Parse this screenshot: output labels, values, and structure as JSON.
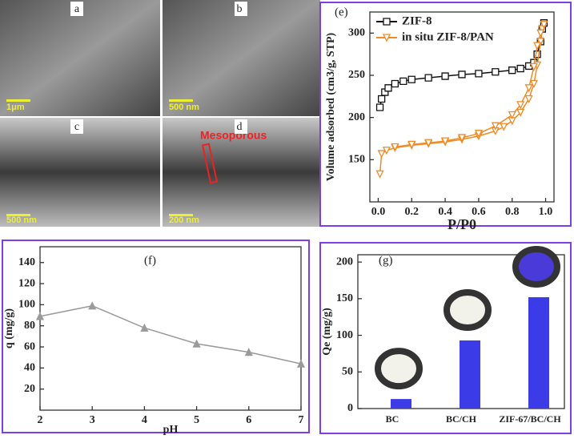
{
  "images": {
    "panels": [
      {
        "label": "a",
        "scale": "1μm"
      },
      {
        "label": "b",
        "scale": "500 nm"
      },
      {
        "label": "c",
        "scale": "500 nm"
      },
      {
        "label": "d",
        "scale": "200 nm"
      }
    ],
    "annotation": "Mesoporous"
  },
  "chart_data": [
    {
      "type": "line",
      "title": "(e)",
      "x_label": "P/P0",
      "y_label": "Volume adsorbed (cm3/g, STP)",
      "xlim": [
        -0.05,
        1.05
      ],
      "ylim": [
        100,
        325
      ],
      "xticks": [
        {
          "value": 0,
          "label": "0.0"
        },
        {
          "value": 0.2,
          "label": "0.2"
        },
        {
          "value": 0.4,
          "label": "0.4"
        },
        {
          "value": 0.6,
          "label": "0.6"
        },
        {
          "value": 0.8,
          "label": "0.8"
        },
        {
          "value": 1,
          "label": "1.0"
        }
      ],
      "yticks": [
        150,
        200,
        250,
        300
      ],
      "legend": "upper-left",
      "series": [
        {
          "name": "ZIF-8",
          "color": "#111111",
          "marker": "square",
          "x": [
            0.01,
            0.02,
            0.04,
            0.06,
            0.1,
            0.15,
            0.2,
            0.3,
            0.4,
            0.5,
            0.6,
            0.7,
            0.8,
            0.85,
            0.9,
            0.93,
            0.95,
            0.97,
            0.98,
            0.99
          ],
          "values": [
            212,
            222,
            230,
            235,
            240,
            243,
            245,
            247,
            249,
            251,
            252,
            254,
            256,
            258,
            261,
            265,
            275,
            290,
            305,
            312
          ]
        },
        {
          "name": "in situ ZIF-8/PAN",
          "color": "#f08a24",
          "marker": "triangle-down",
          "x": [
            0.01,
            0.02,
            0.05,
            0.1,
            0.2,
            0.3,
            0.4,
            0.5,
            0.6,
            0.7,
            0.75,
            0.8,
            0.85,
            0.9,
            0.93,
            0.95,
            0.97,
            0.98,
            0.99,
            0.97,
            0.95,
            0.93,
            0.9,
            0.85,
            0.8,
            0.7,
            0.6,
            0.5,
            0.4,
            0.3,
            0.2,
            0.1
          ],
          "values": [
            133,
            157,
            161,
            164,
            167,
            169,
            171,
            174,
            178,
            184,
            189,
            196,
            206,
            222,
            240,
            262,
            290,
            305,
            310,
            300,
            285,
            260,
            235,
            215,
            203,
            190,
            181,
            176,
            172,
            170,
            168,
            165
          ]
        }
      ]
    },
    {
      "type": "line",
      "title": "(f)",
      "x_label": "pH",
      "y_label": "q (mg/g)",
      "xlim": [
        2,
        7
      ],
      "ylim": [
        0,
        155
      ],
      "xticks": [
        2,
        3,
        4,
        5,
        6,
        7
      ],
      "yticks": [
        20,
        40,
        60,
        80,
        100,
        120,
        140
      ],
      "series": [
        {
          "color": "#9a9a9a",
          "marker": "triangle",
          "x": [
            2,
            3,
            4,
            5,
            6,
            7
          ],
          "values": [
            89,
            99,
            78,
            63,
            55,
            44
          ]
        }
      ]
    },
    {
      "type": "bar",
      "title": "(g)",
      "y_label": "Qe (mg/g)",
      "categories": [
        "BC",
        "BC/CH",
        "ZIF-67/BC/CH"
      ],
      "values": [
        13,
        93,
        152
      ],
      "color": "#3b3be8",
      "ylim": [
        0,
        210
      ],
      "yticks": [
        0,
        50,
        100,
        150,
        200
      ]
    }
  ]
}
